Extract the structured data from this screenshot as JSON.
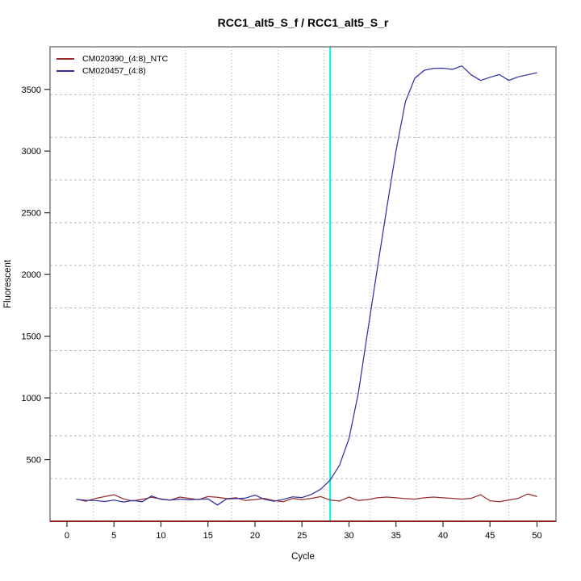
{
  "chart_data": {
    "type": "line",
    "title": "RCC1_alt5_S_f / RCC1_alt5_S_r",
    "xlabel": "Cycle",
    "ylabel": "Fluorescent",
    "xlim": [
      -1.8,
      52.02
    ],
    "ylim": [
      0,
      3845
    ],
    "x_ticks": [
      0,
      5,
      10,
      15,
      20,
      25,
      30,
      35,
      40,
      45,
      50
    ],
    "y_ticks": [
      500,
      1000,
      1500,
      2000,
      2500,
      3000,
      3500
    ],
    "grid": {
      "vertical_x": [
        2.8,
        7.71,
        12.62,
        17.53,
        22.44,
        27.35,
        32.26,
        37.17,
        42.08,
        46.99
      ],
      "horizontal_y": [
        346,
        692,
        1037,
        1383,
        1729,
        2074,
        2420,
        2766,
        3111,
        3457
      ],
      "vertical_style": "dotted",
      "horizontal_style": "dashed",
      "color": "#b8b8b8"
    },
    "threshold_line": {
      "x": 28,
      "color": "#00eeee"
    },
    "baseline_line": {
      "y": 0,
      "color": "#8b2323"
    },
    "box_color": "#878787",
    "legend_position": "top-left",
    "x": [
      1,
      2,
      3,
      4,
      5,
      6,
      7,
      8,
      9,
      10,
      11,
      12,
      13,
      14,
      15,
      16,
      17,
      18,
      19,
      20,
      21,
      22,
      23,
      24,
      25,
      26,
      27,
      28,
      29,
      30,
      31,
      32,
      33,
      34,
      35,
      36,
      37,
      38,
      39,
      40,
      41,
      42,
      43,
      44,
      45,
      46,
      47,
      48,
      49,
      50
    ],
    "series": [
      {
        "name": "CM020390_(4:8)_NTC",
        "color": "#9b2c2c",
        "values": [
          180,
          162,
          185,
          200,
          215,
          182,
          165,
          178,
          195,
          182,
          172,
          196,
          186,
          176,
          200,
          194,
          184,
          190,
          168,
          176,
          186,
          168,
          158,
          186,
          176,
          186,
          200,
          172,
          164,
          196,
          168,
          176,
          190,
          196,
          190,
          184,
          180,
          190,
          196,
          190,
          186,
          180,
          186,
          215,
          166,
          158,
          172,
          186,
          222,
          200
        ]
      },
      {
        "name": "CM020457_(4:8)",
        "color": "#3232a0",
        "values": [
          178,
          170,
          168,
          160,
          172,
          156,
          168,
          158,
          205,
          178,
          172,
          180,
          174,
          178,
          182,
          132,
          182,
          184,
          188,
          212,
          178,
          162,
          178,
          198,
          192,
          218,
          260,
          335,
          455,
          670,
          1040,
          1545,
          2040,
          2530,
          3000,
          3400,
          3590,
          3655,
          3670,
          3672,
          3662,
          3690,
          3618,
          3572,
          3598,
          3620,
          3572,
          3602,
          3618,
          3635
        ]
      }
    ]
  }
}
